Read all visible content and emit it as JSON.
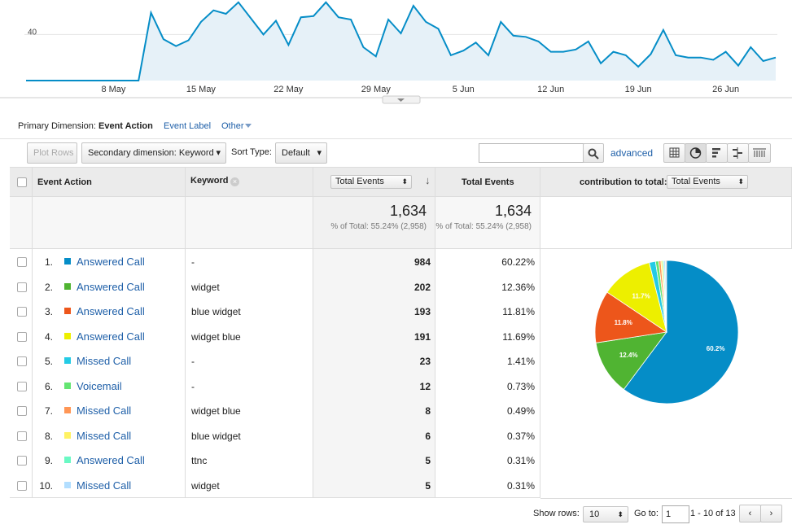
{
  "chart_data": [
    {
      "type": "line",
      "color": "#058dc7",
      "ylim": [
        0,
        70
      ],
      "yticks": [
        40
      ],
      "categories": [
        null,
        null,
        null,
        null,
        null,
        null,
        null,
        "8 May",
        null,
        null,
        null,
        null,
        null,
        null,
        "15 May",
        null,
        null,
        null,
        null,
        null,
        null,
        "22 May",
        null,
        null,
        null,
        null,
        null,
        null,
        "29 May",
        null,
        null,
        null,
        null,
        null,
        null,
        "5 Jun",
        null,
        null,
        null,
        null,
        null,
        null,
        "12 Jun",
        null,
        null,
        null,
        null,
        null,
        null,
        "19 Jun",
        null,
        null,
        null,
        null,
        null,
        null,
        "26 Jun",
        null,
        null,
        null,
        null
      ],
      "values": [
        0,
        0,
        0,
        0,
        0,
        0,
        0,
        0,
        0,
        0,
        59,
        36,
        30,
        35,
        51,
        61,
        58,
        68,
        54,
        40,
        52,
        31,
        55,
        56,
        68,
        55,
        53,
        29,
        21,
        53,
        41,
        65,
        51,
        45,
        22,
        26,
        33,
        22,
        51,
        39,
        38,
        34,
        25,
        25,
        27,
        34,
        15,
        25,
        22,
        12,
        23,
        44,
        22,
        20,
        20,
        18,
        25,
        13,
        29,
        17,
        20
      ]
    },
    {
      "type": "pie",
      "values": [
        60.22,
        12.36,
        11.81,
        11.69,
        1.41,
        0.73,
        0.49,
        0.37,
        0.31,
        0.31
      ],
      "value_labels": [
        "60.2%",
        "12.4%",
        "11.8%",
        "11.7%",
        null,
        null,
        null,
        null,
        null,
        null
      ],
      "colors": [
        "#058dc7",
        "#50b432",
        "#ed561b",
        "#edef00",
        "#24cbe5",
        "#64e572",
        "#ff9655",
        "#fff263",
        "#6af9c4",
        "#b2deff"
      ]
    }
  ],
  "primary_dimension": {
    "label": "Primary Dimension:",
    "current": "Event Action",
    "options": [
      "Event Label",
      "Other"
    ]
  },
  "toolbar": {
    "plot_rows": "Plot Rows",
    "secondary": "Secondary dimension: Keyword",
    "sort_label": "Sort Type:",
    "sort_value": "Default",
    "advanced": "advanced"
  },
  "table": {
    "headers": [
      "Event Action",
      "Keyword",
      "Total Events",
      "Total Events"
    ],
    "contribution_label": "contribution to total:",
    "contribution_value": "Total Events",
    "totals": [
      {
        "value": "1,634",
        "note": "% of Total: 55.24% (2,958)"
      },
      {
        "value": "1,634",
        "note": "% of Total: 55.24% (2,958)"
      }
    ],
    "rows": [
      [
        "1.",
        "Answered Call",
        "-",
        "984",
        "60.22%"
      ],
      [
        "2.",
        "Answered Call",
        "widget",
        "202",
        "12.36%"
      ],
      [
        "3.",
        "Answered Call",
        "blue widget",
        "193",
        "11.81%"
      ],
      [
        "4.",
        "Answered Call",
        "widget blue",
        "191",
        "11.69%"
      ],
      [
        "5.",
        "Missed Call",
        "-",
        "23",
        "1.41%"
      ],
      [
        "6.",
        "Voicemail",
        "-",
        "12",
        "0.73%"
      ],
      [
        "7.",
        "Missed Call",
        "widget blue",
        "8",
        "0.49%"
      ],
      [
        "8.",
        "Missed Call",
        "blue widget",
        "6",
        "0.37%"
      ],
      [
        "9.",
        "Answered Call",
        "ttnc",
        "5",
        "0.31%"
      ],
      [
        "10.",
        "Missed Call",
        "widget",
        "5",
        "0.31%"
      ]
    ]
  },
  "pager": {
    "show_rows": "Show rows:",
    "rows_value": "10",
    "goto": "Go to:",
    "goto_value": "1",
    "range": "1 - 10 of 13"
  }
}
